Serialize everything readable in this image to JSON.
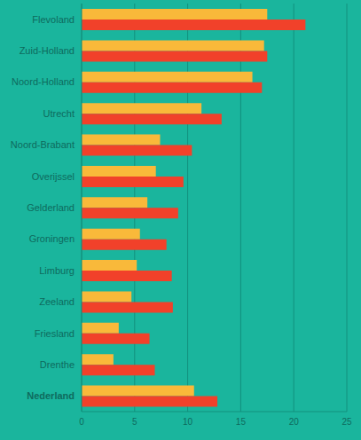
{
  "chart_data": {
    "type": "bar",
    "orientation": "horizontal",
    "grid": true,
    "categories": [
      "Flevoland",
      "Zuid-Holland",
      "Noord-Holland",
      "Utrecht",
      "Noord-Brabant",
      "Overijssel",
      "Gelderland",
      "Groningen",
      "Limburg",
      "Zeeland",
      "Friesland",
      "Drenthe",
      "Nederland"
    ],
    "series": [
      {
        "color": "#f9b93a",
        "values": [
          17.5,
          17.2,
          16.1,
          11.3,
          7.4,
          7.0,
          6.2,
          5.5,
          5.2,
          4.7,
          3.5,
          3.0,
          10.6
        ]
      },
      {
        "color": "#f1412a",
        "values": [
          21.1,
          17.5,
          17.0,
          13.2,
          10.4,
          9.6,
          9.1,
          8.0,
          8.5,
          8.6,
          6.4,
          6.9,
          12.8
        ]
      }
    ],
    "xlim": [
      0,
      25
    ],
    "xticks": [
      0,
      5,
      10,
      15,
      20,
      25
    ]
  }
}
